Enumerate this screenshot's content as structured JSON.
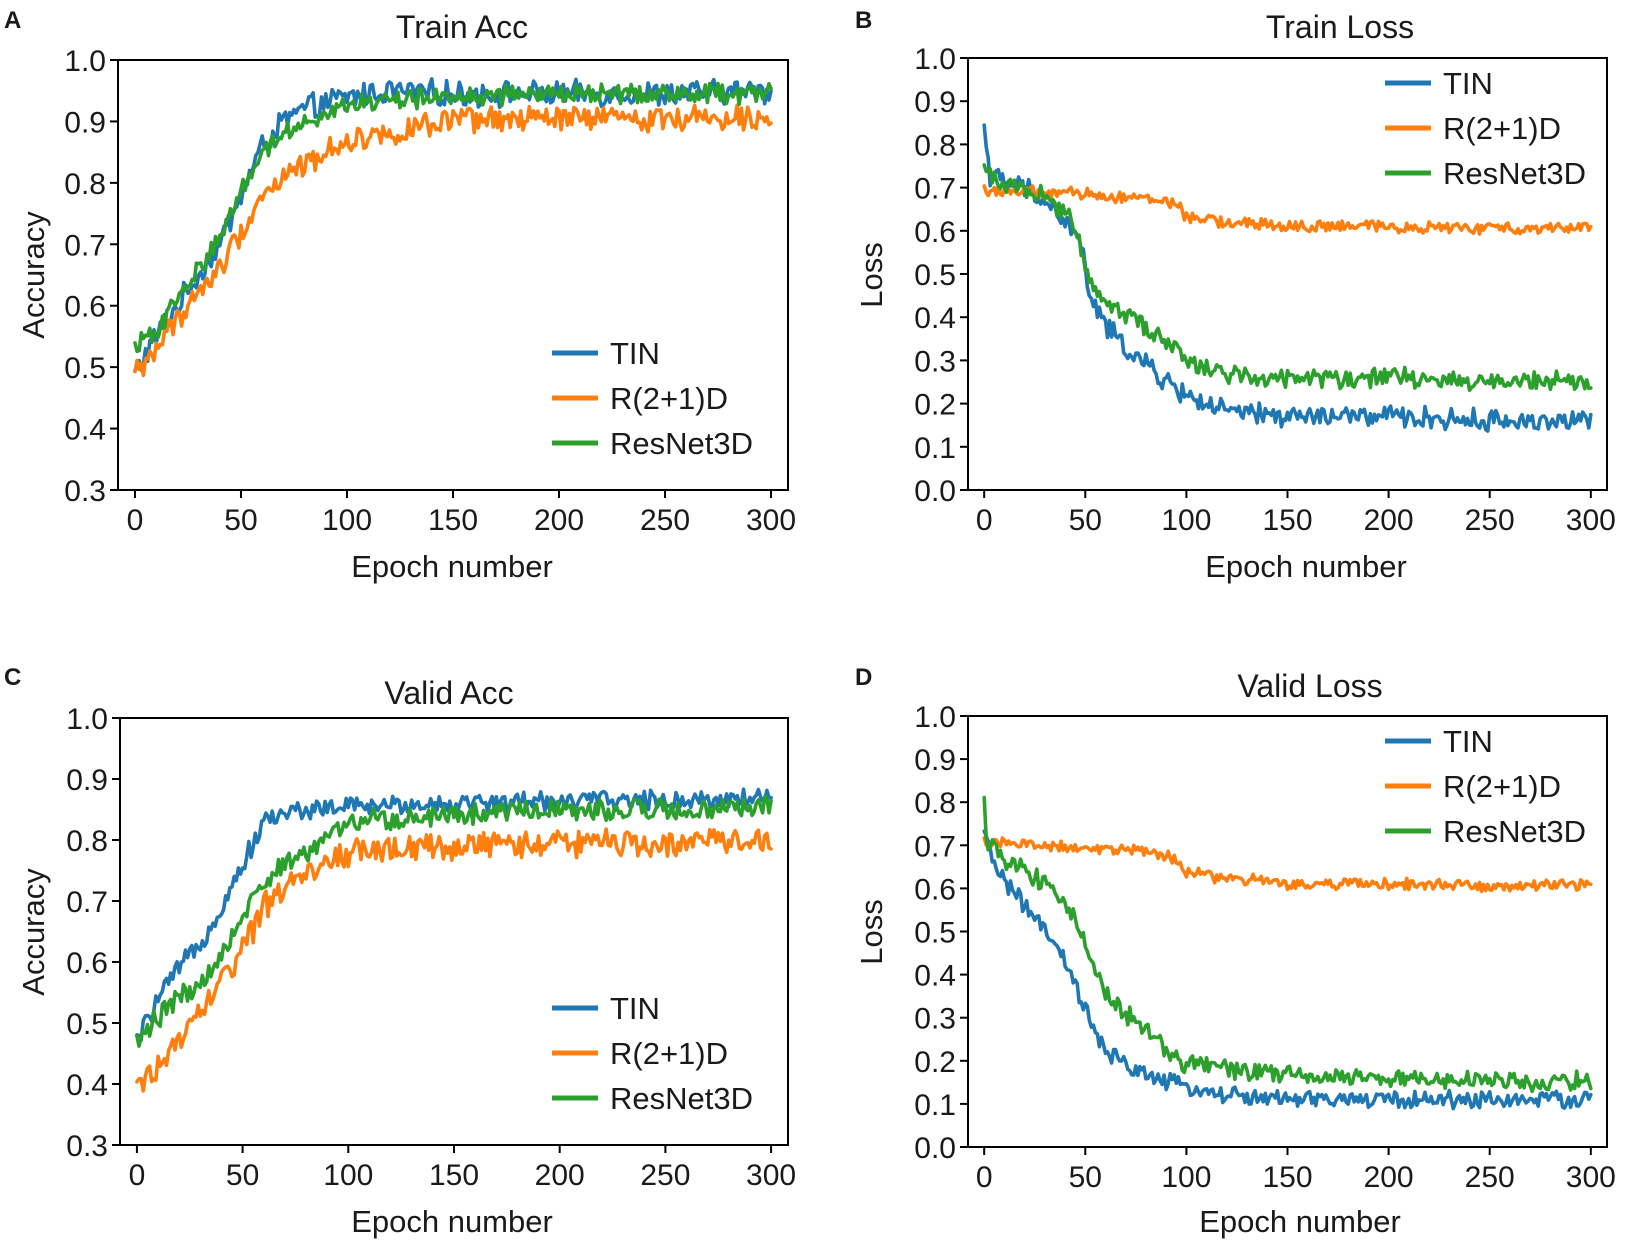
{
  "figure": {
    "colors": {
      "TIN": "#1f77b4",
      "R(2+1)D": "#ff7f0e",
      "ResNet3D": "#2ca02c"
    },
    "panel_labels": [
      "A",
      "B",
      "C",
      "D"
    ]
  },
  "chart_data": [
    {
      "panel": "A",
      "type": "line",
      "title": "Train Acc",
      "xlabel": "Epoch number",
      "ylabel": "Accuracy",
      "xlim": [
        -8,
        308
      ],
      "ylim": [
        0.3,
        1.0
      ],
      "xticks": [
        0,
        50,
        100,
        150,
        200,
        250,
        300
      ],
      "xtick_labels": [
        "0",
        "50",
        "100",
        "150",
        "200",
        "250",
        "300"
      ],
      "yticks": [
        0.3,
        0.4,
        0.5,
        0.6,
        0.7,
        0.8,
        0.9,
        1.0
      ],
      "ytick_labels": [
        "0.3",
        "0.4",
        "0.5",
        "0.6",
        "0.7",
        "0.8",
        "0.9",
        "1.0"
      ],
      "legend_position": "lower-right",
      "series": [
        {
          "name": "TIN",
          "color": "#1f77b4",
          "x": [
            0,
            10,
            20,
            30,
            40,
            50,
            60,
            70,
            80,
            90,
            100,
            120,
            150,
            200,
            250,
            300
          ],
          "y": [
            0.49,
            0.55,
            0.6,
            0.65,
            0.7,
            0.78,
            0.86,
            0.9,
            0.92,
            0.93,
            0.94,
            0.95,
            0.945,
            0.945,
            0.945,
            0.95
          ],
          "noise": 0.018
        },
        {
          "name": "R(2+1)D",
          "color": "#ff7f0e",
          "x": [
            0,
            10,
            20,
            30,
            40,
            50,
            60,
            70,
            80,
            90,
            100,
            120,
            150,
            200,
            250,
            300
          ],
          "y": [
            0.49,
            0.53,
            0.58,
            0.62,
            0.66,
            0.72,
            0.78,
            0.81,
            0.83,
            0.85,
            0.87,
            0.88,
            0.9,
            0.905,
            0.905,
            0.91
          ],
          "noise": 0.018
        },
        {
          "name": "ResNet3D",
          "color": "#2ca02c",
          "x": [
            0,
            10,
            20,
            30,
            40,
            50,
            60,
            70,
            80,
            90,
            100,
            120,
            150,
            200,
            250,
            300
          ],
          "y": [
            0.53,
            0.56,
            0.61,
            0.66,
            0.71,
            0.79,
            0.85,
            0.88,
            0.9,
            0.915,
            0.925,
            0.935,
            0.94,
            0.945,
            0.945,
            0.945
          ],
          "noise": 0.014
        }
      ]
    },
    {
      "panel": "B",
      "type": "line",
      "title": "Train Loss",
      "xlabel": "Epoch number",
      "ylabel": "Loss",
      "xlim": [
        -8,
        308
      ],
      "ylim": [
        0.0,
        1.0
      ],
      "xticks": [
        0,
        50,
        100,
        150,
        200,
        250,
        300
      ],
      "xtick_labels": [
        "0",
        "50",
        "100",
        "150",
        "200",
        "250",
        "300"
      ],
      "yticks": [
        0.0,
        0.1,
        0.2,
        0.3,
        0.4,
        0.5,
        0.6,
        0.7,
        0.8,
        0.9,
        1.0
      ],
      "ytick_labels": [
        "0.0",
        "0.1",
        "0.2",
        "0.3",
        "0.4",
        "0.5",
        "0.6",
        "0.7",
        "0.8",
        "0.9",
        "1.0"
      ],
      "legend_position": "upper-right",
      "series": [
        {
          "name": "TIN",
          "color": "#1f77b4",
          "x": [
            0,
            3,
            10,
            20,
            30,
            40,
            48,
            52,
            60,
            70,
            80,
            90,
            100,
            120,
            150,
            200,
            250,
            300
          ],
          "y": [
            0.84,
            0.73,
            0.71,
            0.7,
            0.67,
            0.62,
            0.57,
            0.45,
            0.38,
            0.33,
            0.29,
            0.25,
            0.22,
            0.18,
            0.17,
            0.17,
            0.16,
            0.16
          ],
          "noise": 0.022
        },
        {
          "name": "R(2+1)D",
          "color": "#ff7f0e",
          "x": [
            0,
            20,
            50,
            80,
            95,
            100,
            120,
            150,
            200,
            250,
            300
          ],
          "y": [
            0.695,
            0.69,
            0.685,
            0.675,
            0.665,
            0.63,
            0.62,
            0.61,
            0.61,
            0.605,
            0.61
          ],
          "noise": 0.012
        },
        {
          "name": "ResNet3D",
          "color": "#2ca02c",
          "x": [
            0,
            5,
            20,
            30,
            40,
            45,
            52,
            60,
            70,
            80,
            90,
            100,
            120,
            150,
            200,
            250,
            300
          ],
          "y": [
            0.74,
            0.72,
            0.7,
            0.68,
            0.64,
            0.61,
            0.49,
            0.44,
            0.41,
            0.38,
            0.34,
            0.3,
            0.27,
            0.26,
            0.26,
            0.25,
            0.25
          ],
          "noise": 0.02
        }
      ]
    },
    {
      "panel": "C",
      "type": "line",
      "title": "Valid Acc",
      "xlabel": "Epoch number",
      "ylabel": "Accuracy",
      "xlim": [
        -8,
        308
      ],
      "ylim": [
        0.3,
        1.0
      ],
      "xticks": [
        0,
        50,
        100,
        150,
        200,
        250,
        300
      ],
      "xtick_labels": [
        "0",
        "50",
        "100",
        "150",
        "200",
        "250",
        "300"
      ],
      "yticks": [
        0.3,
        0.4,
        0.5,
        0.6,
        0.7,
        0.8,
        0.9,
        1.0
      ],
      "ytick_labels": [
        "0.3",
        "0.4",
        "0.5",
        "0.6",
        "0.7",
        "0.8",
        "0.9",
        "1.0"
      ],
      "legend_position": "lower-right",
      "series": [
        {
          "name": "TIN",
          "color": "#1f77b4",
          "x": [
            0,
            10,
            20,
            30,
            40,
            50,
            60,
            70,
            80,
            100,
            150,
            200,
            250,
            300
          ],
          "y": [
            0.47,
            0.54,
            0.59,
            0.63,
            0.69,
            0.76,
            0.83,
            0.845,
            0.85,
            0.855,
            0.86,
            0.865,
            0.865,
            0.87
          ],
          "noise": 0.014
        },
        {
          "name": "R(2+1)D",
          "color": "#ff7f0e",
          "x": [
            0,
            10,
            20,
            30,
            40,
            50,
            60,
            70,
            80,
            90,
            100,
            150,
            200,
            250,
            300
          ],
          "y": [
            0.39,
            0.43,
            0.47,
            0.52,
            0.57,
            0.62,
            0.69,
            0.72,
            0.745,
            0.765,
            0.78,
            0.79,
            0.795,
            0.795,
            0.8
          ],
          "noise": 0.02
        },
        {
          "name": "ResNet3D",
          "color": "#2ca02c",
          "x": [
            0,
            10,
            20,
            30,
            40,
            50,
            60,
            70,
            80,
            90,
            100,
            150,
            200,
            250,
            300
          ],
          "y": [
            0.47,
            0.51,
            0.54,
            0.57,
            0.61,
            0.67,
            0.73,
            0.76,
            0.78,
            0.8,
            0.83,
            0.845,
            0.85,
            0.85,
            0.855
          ],
          "noise": 0.016
        }
      ]
    },
    {
      "panel": "D",
      "type": "line",
      "title": "Valid Loss",
      "xlabel": "Epoch number",
      "ylabel": "Loss",
      "xlim": [
        -8,
        308
      ],
      "ylim": [
        0.0,
        1.0
      ],
      "xticks": [
        0,
        50,
        100,
        150,
        200,
        250,
        300
      ],
      "xtick_labels": [
        "0",
        "50",
        "100",
        "150",
        "200",
        "250",
        "300"
      ],
      "yticks": [
        0.0,
        0.1,
        0.2,
        0.3,
        0.4,
        0.5,
        0.6,
        0.7,
        0.8,
        0.9,
        1.0
      ],
      "ytick_labels": [
        "0.0",
        "0.1",
        "0.2",
        "0.3",
        "0.4",
        "0.5",
        "0.6",
        "0.7",
        "0.8",
        "0.9",
        "1.0"
      ],
      "legend_position": "upper-right",
      "series": [
        {
          "name": "TIN",
          "color": "#1f77b4",
          "x": [
            0,
            5,
            10,
            20,
            30,
            40,
            50,
            55,
            60,
            70,
            80,
            90,
            100,
            120,
            150,
            200,
            250,
            300
          ],
          "y": [
            0.72,
            0.66,
            0.62,
            0.56,
            0.5,
            0.43,
            0.32,
            0.26,
            0.22,
            0.19,
            0.17,
            0.15,
            0.14,
            0.12,
            0.11,
            0.11,
            0.11,
            0.11
          ],
          "noise": 0.018
        },
        {
          "name": "R(2+1)D",
          "color": "#ff7f0e",
          "x": [
            0,
            20,
            50,
            80,
            95,
            100,
            120,
            150,
            200,
            250,
            300
          ],
          "y": [
            0.71,
            0.7,
            0.695,
            0.685,
            0.67,
            0.635,
            0.625,
            0.61,
            0.61,
            0.605,
            0.61
          ],
          "noise": 0.012
        },
        {
          "name": "ResNet3D",
          "color": "#2ca02c",
          "x": [
            0,
            1,
            3,
            10,
            20,
            30,
            40,
            48,
            55,
            60,
            70,
            80,
            90,
            100,
            120,
            150,
            200,
            250,
            300
          ],
          "y": [
            0.8,
            0.72,
            0.7,
            0.67,
            0.64,
            0.61,
            0.57,
            0.5,
            0.41,
            0.36,
            0.31,
            0.27,
            0.23,
            0.19,
            0.18,
            0.17,
            0.16,
            0.155,
            0.15
          ],
          "noise": 0.02
        }
      ]
    }
  ]
}
